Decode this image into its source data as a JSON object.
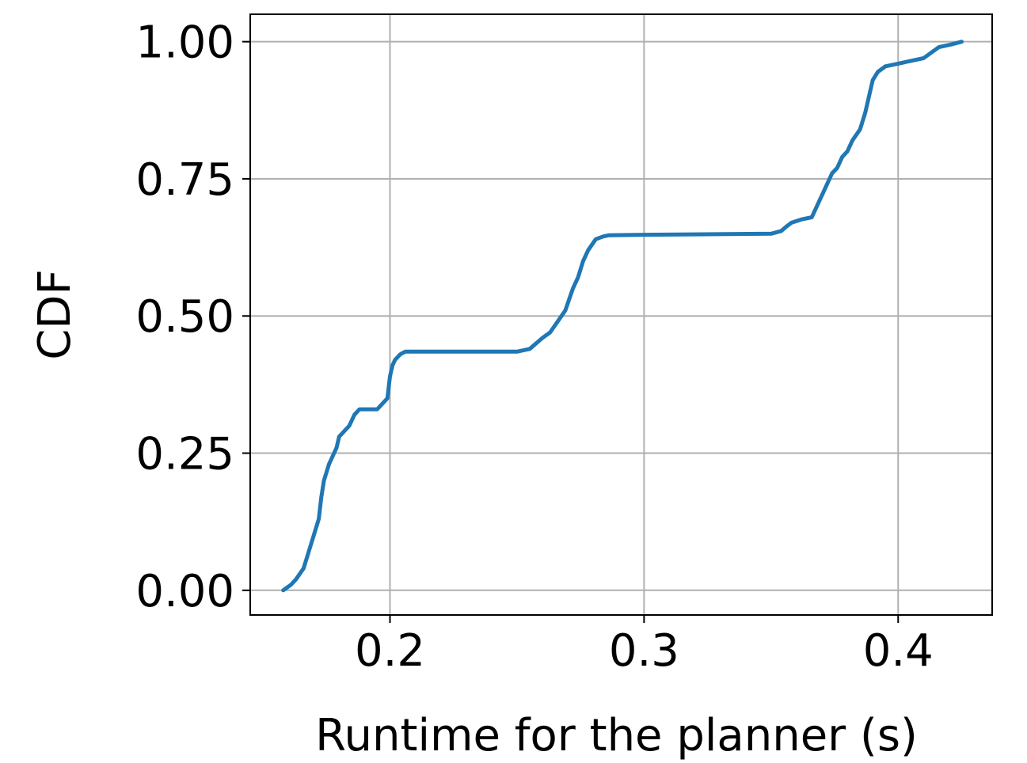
{
  "chart_data": {
    "type": "line",
    "title": "",
    "xlabel": "Runtime for the planner (s)",
    "ylabel": "CDF",
    "xlim": [
      0.145,
      0.437
    ],
    "ylim": [
      -0.045,
      1.05
    ],
    "grid": true,
    "x_ticks": [
      0.2,
      0.3,
      0.4
    ],
    "x_tick_labels": [
      "0.2",
      "0.3",
      "0.4"
    ],
    "y_ticks": [
      0.0,
      0.25,
      0.5,
      0.75,
      1.0
    ],
    "y_tick_labels": [
      "0.00",
      "0.25",
      "0.50",
      "0.75",
      "1.00"
    ],
    "series": [
      {
        "color": "#1f77b4",
        "x": [
          0.158,
          0.161,
          0.163,
          0.166,
          0.168,
          0.17,
          0.172,
          0.173,
          0.174,
          0.176,
          0.177,
          0.178,
          0.179,
          0.18,
          0.182,
          0.184,
          0.186,
          0.188,
          0.19,
          0.195,
          0.199,
          0.2,
          0.201,
          0.202,
          0.204,
          0.206,
          0.22,
          0.25,
          0.255,
          0.26,
          0.263,
          0.266,
          0.269,
          0.272,
          0.274,
          0.276,
          0.278,
          0.281,
          0.284,
          0.286,
          0.3,
          0.35,
          0.354,
          0.356,
          0.358,
          0.362,
          0.366,
          0.369,
          0.372,
          0.374,
          0.376,
          0.378,
          0.38,
          0.382,
          0.385,
          0.387,
          0.388,
          0.389,
          0.39,
          0.392,
          0.395,
          0.4,
          0.405,
          0.41,
          0.416,
          0.421,
          0.425
        ],
        "y": [
          0.0,
          0.01,
          0.02,
          0.04,
          0.07,
          0.1,
          0.13,
          0.17,
          0.2,
          0.23,
          0.24,
          0.25,
          0.26,
          0.28,
          0.29,
          0.3,
          0.32,
          0.33,
          0.33,
          0.33,
          0.35,
          0.39,
          0.41,
          0.42,
          0.43,
          0.435,
          0.435,
          0.435,
          0.44,
          0.46,
          0.47,
          0.49,
          0.51,
          0.55,
          0.57,
          0.6,
          0.62,
          0.64,
          0.645,
          0.647,
          0.648,
          0.65,
          0.655,
          0.663,
          0.67,
          0.676,
          0.68,
          0.71,
          0.74,
          0.76,
          0.77,
          0.79,
          0.8,
          0.82,
          0.84,
          0.87,
          0.89,
          0.91,
          0.93,
          0.945,
          0.955,
          0.96,
          0.965,
          0.97,
          0.99,
          0.995,
          1.0
        ]
      }
    ]
  }
}
